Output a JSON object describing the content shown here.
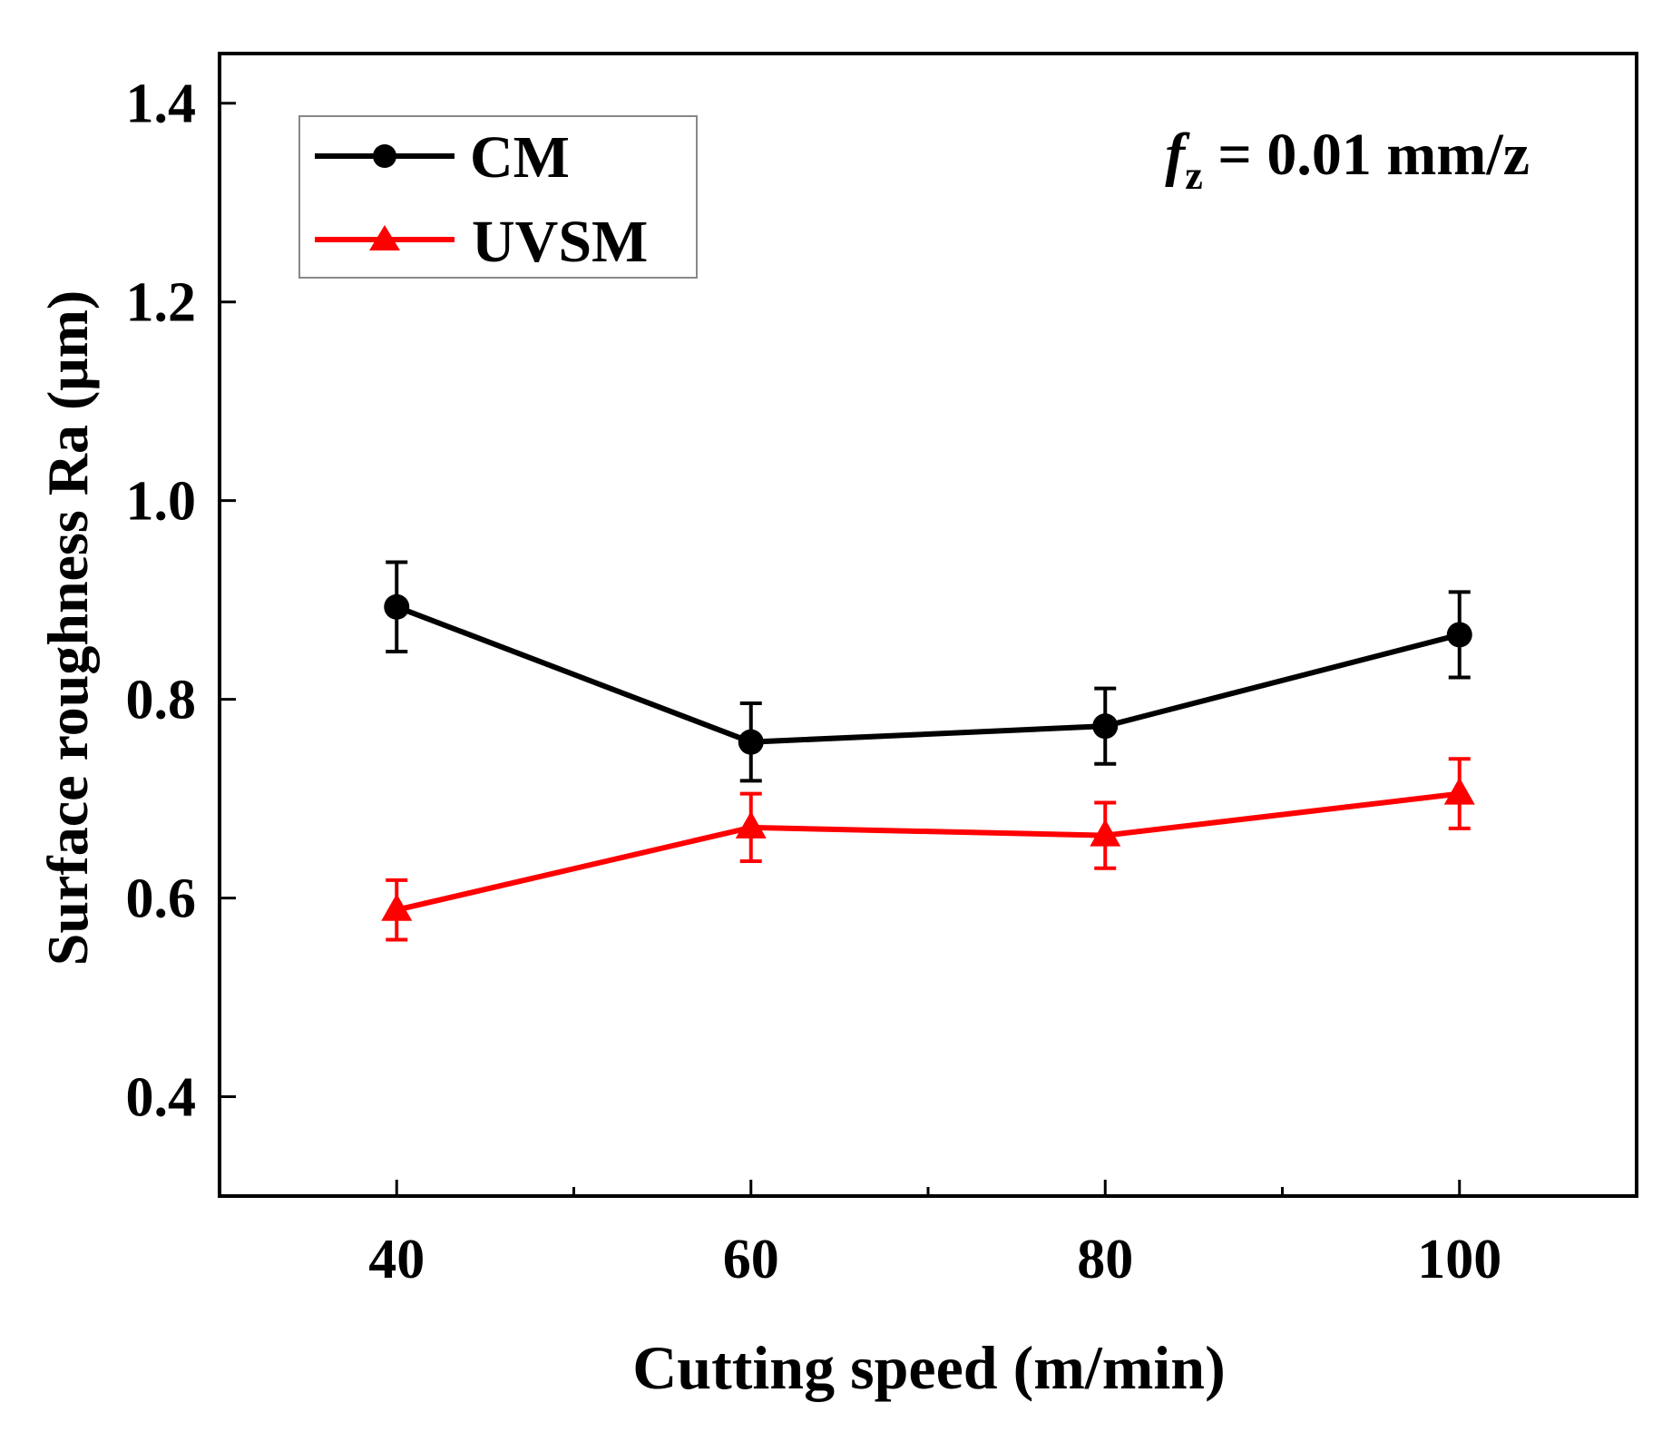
{
  "chart_data": {
    "type": "line",
    "title": "",
    "xlabel": "Cutting speed (m/min)",
    "ylabel": "Surface roughness Ra (μm)",
    "x": [
      40,
      60,
      80,
      100
    ],
    "xlim": [
      30,
      110
    ],
    "ylim": [
      0.3,
      1.45
    ],
    "xticks": [
      "40",
      "60",
      "80",
      "100"
    ],
    "yticks": [
      "0.4",
      "0.6",
      "0.8",
      "1.0",
      "1.2",
      "1.4"
    ],
    "xticks_values": [
      40,
      60,
      80,
      100
    ],
    "yticks_values": [
      0.4,
      0.6,
      0.8,
      1.0,
      1.2,
      1.4
    ],
    "x_minor_ticks": [
      50,
      70,
      90
    ],
    "grid": false,
    "legend_position": "top-left",
    "annotation": {
      "var": "f",
      "sub": "z",
      "rest": " = 0.01 mm/z"
    },
    "series": [
      {
        "name": "CM",
        "color": "#000000",
        "marker": "circle",
        "values": [
          0.893,
          0.757,
          0.773,
          0.865
        ],
        "errors": [
          0.045,
          0.039,
          0.038,
          0.043
        ]
      },
      {
        "name": "UVSM",
        "color": "#ff0000",
        "marker": "triangle",
        "values": [
          0.588,
          0.671,
          0.663,
          0.705
        ],
        "errors": [
          0.03,
          0.034,
          0.033,
          0.035
        ]
      }
    ]
  }
}
